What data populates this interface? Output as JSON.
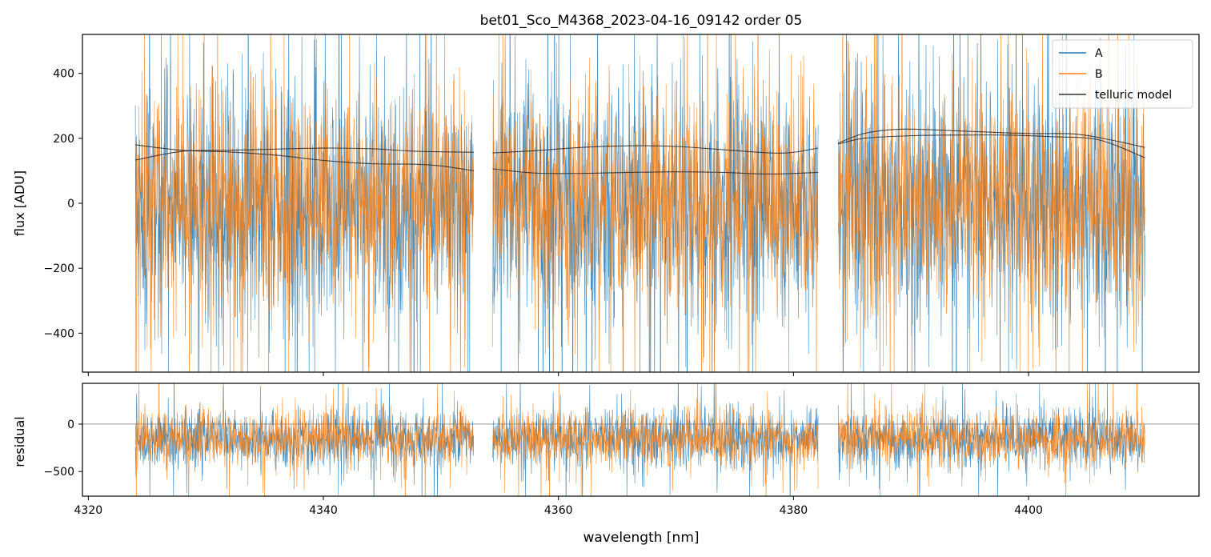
{
  "figure": {
    "title": "bet01_Sco_M4368_2023-04-16_09142  order 05"
  },
  "colors": {
    "A": "#1f77b4",
    "B": "#ff7f0e",
    "model": "#333333",
    "zero_line": "#555555"
  },
  "chart_data": [
    {
      "type": "line",
      "panel": "top",
      "xlabel": "",
      "ylabel": "flux [ADU]",
      "xlim": [
        4319.5,
        4414.5
      ],
      "ylim": [
        -520,
        520
      ],
      "xticks": [
        4320,
        4340,
        4360,
        4380,
        4400
      ],
      "xticklabels_shown": false,
      "yticks": [
        -400,
        -200,
        0,
        200,
        400
      ],
      "yticklabels": [
        "−400",
        "−200",
        "0",
        "200",
        "400"
      ],
      "grid": false,
      "legend": {
        "position": "top-right",
        "entries": [
          "A",
          "B",
          "telluric model"
        ]
      },
      "segments": [
        [
          4324.0,
          4352.8
        ],
        [
          4354.4,
          4382.1
        ],
        [
          4383.8,
          4409.9
        ]
      ],
      "series": [
        {
          "name": "A",
          "kind": "noisy",
          "center": 0,
          "spread": 185,
          "spike_rate": 0.05
        },
        {
          "name": "B",
          "kind": "noisy",
          "center": 0,
          "spread": 175,
          "spike_rate": 0.05
        },
        {
          "name": "telluric model",
          "kind": "smooth",
          "curves": [
            [
              [
                4324.0,
                180
              ],
              [
                4328,
                163
              ],
              [
                4332,
                158
              ],
              [
                4336,
                148
              ],
              [
                4340,
                132
              ],
              [
                4344,
                122
              ],
              [
                4348,
                120
              ],
              [
                4350,
                115
              ],
              [
                4352.8,
                100
              ]
            ],
            [
              [
                4324.0,
                133
              ],
              [
                4328,
                160
              ],
              [
                4332,
                163
              ],
              [
                4336,
                167
              ],
              [
                4340,
                170
              ],
              [
                4344,
                168
              ],
              [
                4348,
                160
              ],
              [
                4352.8,
                157
              ]
            ],
            [
              [
                4354.4,
                106
              ],
              [
                4358,
                93
              ],
              [
                4362,
                92
              ],
              [
                4366,
                95
              ],
              [
                4370,
                97
              ],
              [
                4374,
                95
              ],
              [
                4378,
                90
              ],
              [
                4382.1,
                95
              ]
            ],
            [
              [
                4354.4,
                155
              ],
              [
                4358,
                162
              ],
              [
                4362,
                172
              ],
              [
                4366,
                177
              ],
              [
                4370,
                175
              ],
              [
                4374,
                165
              ],
              [
                4378,
                155
              ],
              [
                4380,
                157
              ],
              [
                4382.1,
                170
              ]
            ],
            [
              [
                4383.8,
                182
              ],
              [
                4386,
                200
              ],
              [
                4390,
                208
              ],
              [
                4394,
                210
              ],
              [
                4398,
                210
              ],
              [
                4402,
                205
              ],
              [
                4406,
                195
              ],
              [
                4409.9,
                140
              ]
            ],
            [
              [
                4383.8,
                185
              ],
              [
                4386,
                215
              ],
              [
                4389,
                228
              ],
              [
                4392,
                226
              ],
              [
                4396,
                220
              ],
              [
                4400,
                215
              ],
              [
                4404,
                213
              ],
              [
                4407,
                195
              ],
              [
                4409.9,
                172
              ]
            ]
          ]
        }
      ]
    },
    {
      "type": "line",
      "panel": "bottom",
      "xlabel": "wavelength [nm]",
      "ylabel": "residual",
      "xlim": [
        4319.5,
        4414.5
      ],
      "ylim": [
        -760,
        430
      ],
      "xticks": [
        4320,
        4340,
        4360,
        4380,
        4400
      ],
      "xticklabels": [
        "4320",
        "4340",
        "4360",
        "4380",
        "4400"
      ],
      "yticks": [
        -500,
        0
      ],
      "yticklabels": [
        "−500",
        "0"
      ],
      "grid": false,
      "reference_line": 0,
      "segments": [
        [
          4324.0,
          4352.8
        ],
        [
          4354.4,
          4382.1
        ],
        [
          4383.8,
          4409.9
        ]
      ],
      "series": [
        {
          "name": "A",
          "kind": "noisy",
          "center": -150,
          "spread": 150,
          "spike_rate": 0.04
        },
        {
          "name": "B",
          "kind": "noisy",
          "center": -150,
          "spread": 140,
          "spike_rate": 0.04
        }
      ]
    }
  ]
}
